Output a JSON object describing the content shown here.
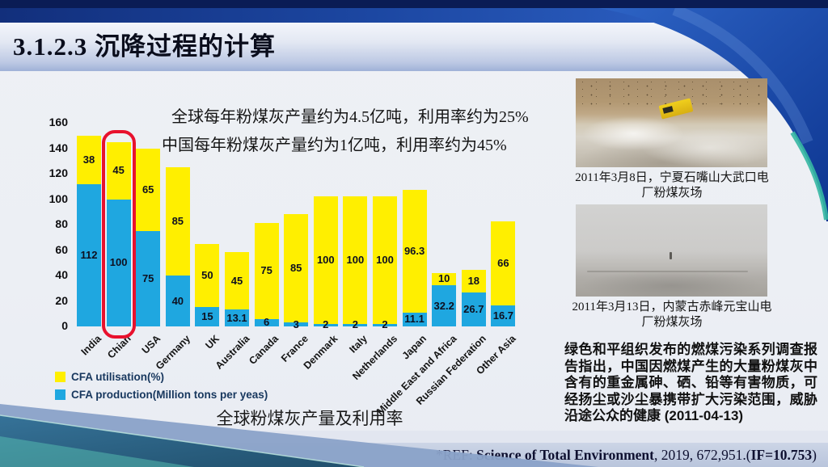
{
  "slide": {
    "title": "3.1.2.3  沉降过程的计算",
    "annotation_line1": "全球每年粉煤灰产量约为4.5亿吨，利用率约为25%",
    "annotation_line2": "中国每年粉煤灰产量约为1亿吨，利用率约为45%",
    "chart_caption": "全球粉煤灰产量及利用率",
    "caption_footnote": "*",
    "side_text": "绿色和平组织发布的燃煤污染系列调查报告指出，中国因燃煤产生的大量粉煤灰中含有的重金属砷、硒、铅等有害物质，可经扬尘或沙尘暴携带扩大污染范围，威胁沿途公众的健康 (2011-04-13)",
    "photos": [
      {
        "caption_line1": "2011年3月8日，宁夏石嘴山大武口电",
        "caption_line2": "厂粉煤灰场"
      },
      {
        "caption_line1": "2011年3月13日，内蒙古赤峰元宝山电",
        "caption_line2": "厂粉煤灰场"
      }
    ],
    "reference": {
      "prefix": "*REF: ",
      "journal": "Science of Total Environment",
      "middle": ", 2019, 672,951.(",
      "impact_factor": "IF=10.753",
      "suffix": ")"
    }
  },
  "chart_data": {
    "type": "bar",
    "stacked": true,
    "title": "全球粉煤灰产量及利用率",
    "categories": [
      "India",
      "Chian",
      "USA",
      "Germany",
      "UK",
      "Australia",
      "Canada",
      "France",
      "Denmark",
      "Italy",
      "Netherlands",
      "Japan",
      "Middle East and Africa",
      "Russian Federation",
      "Other Asia"
    ],
    "series": [
      {
        "name": "CFA production(Million tons per yeas)",
        "color": "#1FA7E0",
        "values": [
          112,
          100,
          75,
          40,
          15,
          13.1,
          6,
          3,
          2,
          2,
          2,
          11.1,
          32.2,
          26.7,
          16.7
        ]
      },
      {
        "name": "CFA utilisation(%)",
        "color": "#FFEF00",
        "values": [
          38,
          45,
          65,
          85,
          50,
          45,
          75,
          85,
          100,
          100,
          100,
          96.3,
          10,
          18,
          66
        ]
      }
    ],
    "xlabel": "",
    "ylabel": "",
    "ylim": [
      0,
      160
    ],
    "yticks": [
      0,
      20,
      40,
      60,
      80,
      100,
      120,
      140,
      160
    ],
    "grid": false,
    "legend_position": "bottom-left",
    "highlight_category": "Chian",
    "highlight_color": "#E8112D"
  }
}
